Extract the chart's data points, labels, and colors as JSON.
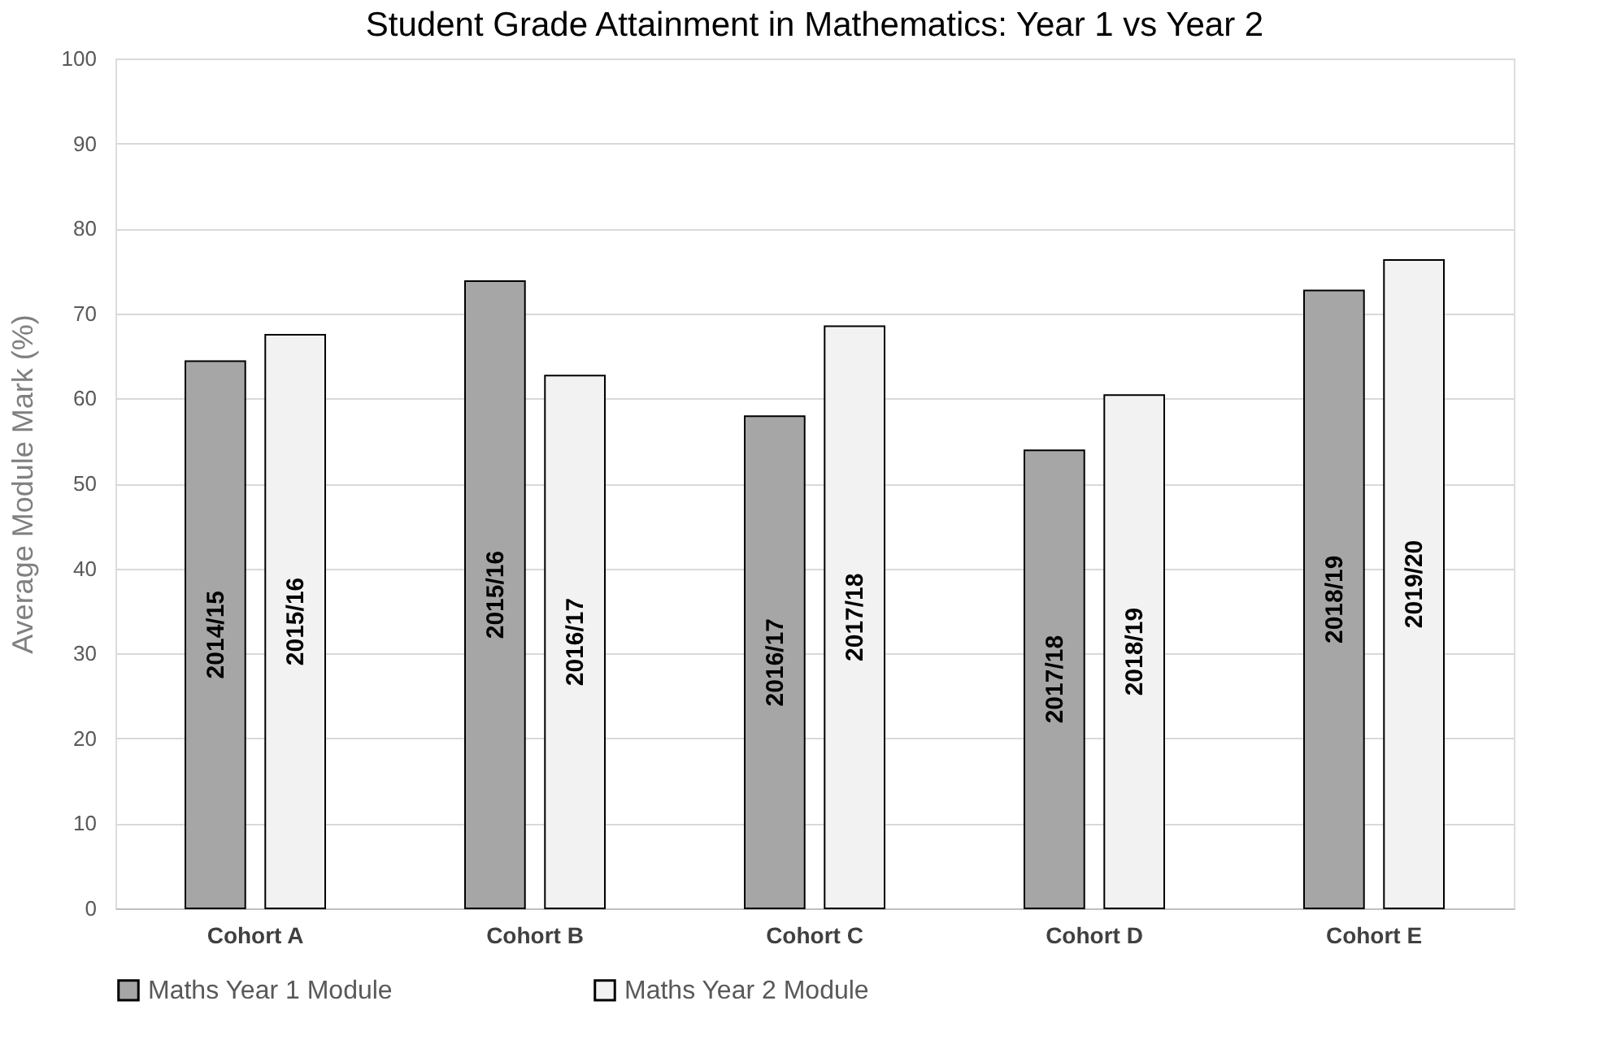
{
  "chart_data": {
    "type": "bar",
    "title": "Student Grade Attainment in Mathematics: Year 1 vs Year 2",
    "ylabel": "Average Module Mark (%)",
    "categories": [
      "Cohort A",
      "Cohort B",
      "Cohort C",
      "Cohort D",
      "Cohort E"
    ],
    "series": [
      {
        "name": "Maths Year 1 Module",
        "color": "#a6a6a6",
        "values": [
          64.4,
          73.8,
          57.9,
          53.9,
          72.7
        ],
        "value_labels": [
          "2014/15",
          "2015/16",
          "2016/17",
          "2017/18",
          "2018/19"
        ]
      },
      {
        "name": "Maths Year 2 Module",
        "color": "#f2f2f2",
        "values": [
          67.5,
          62.7,
          68.5,
          60.4,
          76.3
        ],
        "value_labels": [
          "2015/16",
          "2016/17",
          "2017/18",
          "2018/19",
          "2019/20"
        ]
      }
    ],
    "ylim": [
      0,
      100
    ],
    "yticks": [
      0,
      10,
      20,
      30,
      40,
      50,
      60,
      70,
      80,
      90,
      100
    ],
    "grid": "y",
    "legend": "bottom"
  }
}
